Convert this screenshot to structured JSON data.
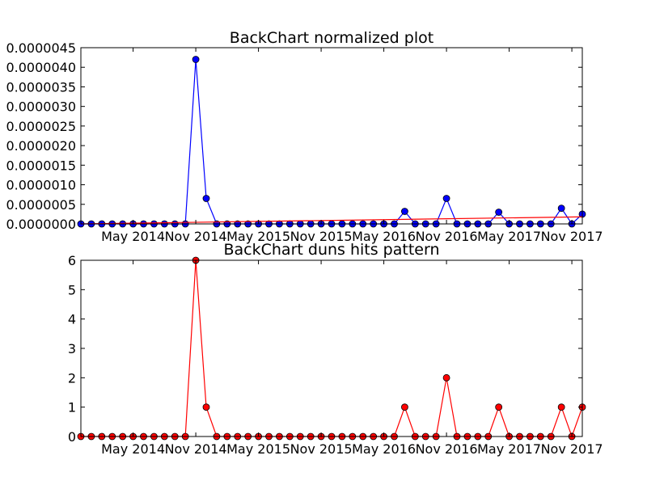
{
  "chart_data": [
    {
      "type": "line",
      "title": "BackChart normalized plot",
      "xlabel": "",
      "ylabel": "",
      "ylim": [
        0,
        4.5e-06
      ],
      "yticks": [
        "0.0000000",
        "0.0000005",
        "0.0000010",
        "0.0000015",
        "0.0000020",
        "0.0000025",
        "0.0000030",
        "0.0000035",
        "0.0000040",
        "0.0000045"
      ],
      "xticks": [
        "May 2014",
        "Nov 2014",
        "May 2015",
        "Nov 2015",
        "May 2016",
        "Nov 2016",
        "May 2017",
        "Nov 2017"
      ],
      "xrange": [
        "2013-12",
        "2017-12"
      ],
      "grid": false,
      "series": [
        {
          "color": "#0000ff",
          "marker": "circle",
          "x": [
            "2013-12",
            "2014-01",
            "2014-02",
            "2014-03",
            "2014-04",
            "2014-05",
            "2014-06",
            "2014-07",
            "2014-08",
            "2014-09",
            "2014-10",
            "2014-11",
            "2014-12",
            "2015-01",
            "2015-02",
            "2015-03",
            "2015-04",
            "2015-05",
            "2015-06",
            "2015-07",
            "2015-08",
            "2015-09",
            "2015-10",
            "2015-11",
            "2015-12",
            "2016-01",
            "2016-02",
            "2016-03",
            "2016-04",
            "2016-05",
            "2016-06",
            "2016-07",
            "2016-08",
            "2016-09",
            "2016-10",
            "2016-11",
            "2016-12",
            "2017-01",
            "2017-02",
            "2017-03",
            "2017-04",
            "2017-05",
            "2017-06",
            "2017-07",
            "2017-08",
            "2017-09",
            "2017-10",
            "2017-11",
            "2017-12"
          ],
          "values": [
            0,
            0,
            0,
            0,
            0,
            0,
            0,
            0,
            0,
            0,
            0,
            4.2e-06,
            6.5e-07,
            0,
            0,
            0,
            0,
            0,
            0,
            0,
            0,
            0,
            0,
            0,
            0,
            0,
            0,
            0,
            0,
            0,
            0,
            3.2e-07,
            0,
            0,
            0,
            6.5e-07,
            0,
            0,
            0,
            0,
            3e-07,
            0,
            0,
            0,
            0,
            0,
            4e-07,
            0,
            2.5e-07
          ]
        },
        {
          "color": "#ff0000",
          "marker": "none",
          "x": [
            "2013-12",
            "2017-12"
          ],
          "values": [
            0.0,
            1.8e-07
          ]
        }
      ]
    },
    {
      "type": "line",
      "title": "BackChart duns hits pattern",
      "xlabel": "",
      "ylabel": "",
      "ylim": [
        0,
        6
      ],
      "yticks": [
        "0",
        "1",
        "2",
        "3",
        "4",
        "5",
        "6"
      ],
      "xticks": [
        "May 2014",
        "Nov 2014",
        "May 2015",
        "Nov 2015",
        "May 2016",
        "Nov 2016",
        "May 2017",
        "Nov 2017"
      ],
      "xrange": [
        "2013-12",
        "2017-12"
      ],
      "grid": false,
      "series": [
        {
          "color": "#ff0000",
          "marker": "circle",
          "x": [
            "2013-12",
            "2014-01",
            "2014-02",
            "2014-03",
            "2014-04",
            "2014-05",
            "2014-06",
            "2014-07",
            "2014-08",
            "2014-09",
            "2014-10",
            "2014-11",
            "2014-12",
            "2015-01",
            "2015-02",
            "2015-03",
            "2015-04",
            "2015-05",
            "2015-06",
            "2015-07",
            "2015-08",
            "2015-09",
            "2015-10",
            "2015-11",
            "2015-12",
            "2016-01",
            "2016-02",
            "2016-03",
            "2016-04",
            "2016-05",
            "2016-06",
            "2016-07",
            "2016-08",
            "2016-09",
            "2016-10",
            "2016-11",
            "2016-12",
            "2017-01",
            "2017-02",
            "2017-03",
            "2017-04",
            "2017-05",
            "2017-06",
            "2017-07",
            "2017-08",
            "2017-09",
            "2017-10",
            "2017-11",
            "2017-12"
          ],
          "values": [
            0,
            0,
            0,
            0,
            0,
            0,
            0,
            0,
            0,
            0,
            0,
            6,
            1,
            0,
            0,
            0,
            0,
            0,
            0,
            0,
            0,
            0,
            0,
            0,
            0,
            0,
            0,
            0,
            0,
            0,
            0,
            1,
            0,
            0,
            0,
            2,
            0,
            0,
            0,
            0,
            1,
            0,
            0,
            0,
            0,
            0,
            1,
            0,
            1
          ]
        }
      ]
    }
  ]
}
